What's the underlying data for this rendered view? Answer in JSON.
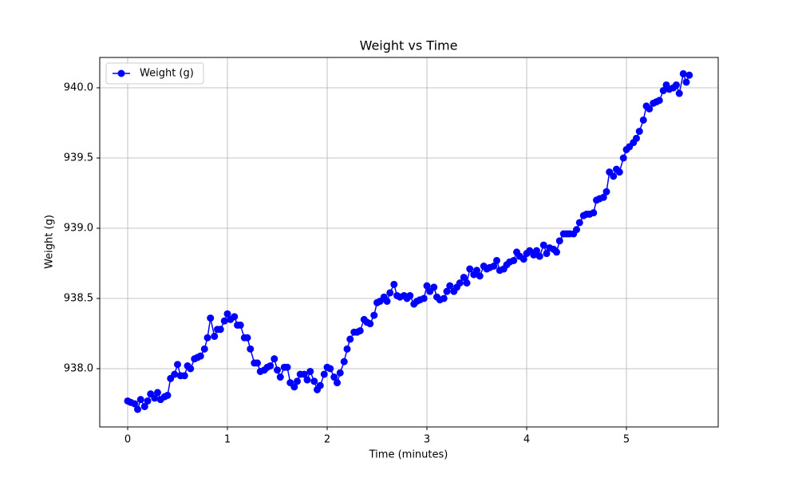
{
  "chart_data": {
    "type": "line",
    "title": "Weight vs Time",
    "x_label": "Time (minutes)",
    "y_label": "Weight (g)",
    "x": [
      0,
      0.03,
      0.07,
      0.1,
      0.13,
      0.17,
      0.2,
      0.23,
      0.27,
      0.3,
      0.33,
      0.37,
      0.4,
      0.43,
      0.47,
      0.5,
      0.53,
      0.57,
      0.6,
      0.63,
      0.67,
      0.7,
      0.73,
      0.77,
      0.8,
      0.83,
      0.87,
      0.9,
      0.93,
      0.97,
      1.0,
      1.03,
      1.07,
      1.1,
      1.13,
      1.17,
      1.2,
      1.23,
      1.27,
      1.3,
      1.33,
      1.37,
      1.4,
      1.43,
      1.47,
      1.5,
      1.53,
      1.57,
      1.6,
      1.63,
      1.67,
      1.7,
      1.73,
      1.77,
      1.8,
      1.83,
      1.87,
      1.9,
      1.93,
      1.97,
      2.0,
      2.03,
      2.07,
      2.1,
      2.13,
      2.17,
      2.2,
      2.23,
      2.27,
      2.3,
      2.33,
      2.37,
      2.4,
      2.43,
      2.47,
      2.5,
      2.53,
      2.57,
      2.6,
      2.63,
      2.67,
      2.7,
      2.73,
      2.77,
      2.8,
      2.83,
      2.87,
      2.9,
      2.93,
      2.97,
      3.0,
      3.03,
      3.07,
      3.1,
      3.13,
      3.17,
      3.2,
      3.23,
      3.27,
      3.3,
      3.33,
      3.37,
      3.4,
      3.43,
      3.47,
      3.5,
      3.53,
      3.57,
      3.6,
      3.63,
      3.67,
      3.7,
      3.73,
      3.77,
      3.8,
      3.83,
      3.87,
      3.9,
      3.93,
      3.97,
      4.0,
      4.03,
      4.07,
      4.1,
      4.13,
      4.17,
      4.2,
      4.23,
      4.27,
      4.3,
      4.33,
      4.37,
      4.4,
      4.43,
      4.47,
      4.5,
      4.53,
      4.57,
      4.6,
      4.63,
      4.67,
      4.7,
      4.73,
      4.77,
      4.8,
      4.83,
      4.87,
      4.9,
      4.93,
      4.97,
      5.0,
      5.03,
      5.07,
      5.1,
      5.13,
      5.17,
      5.2,
      5.23,
      5.27,
      5.3,
      5.33,
      5.37,
      5.4,
      5.43,
      5.47,
      5.5,
      5.53,
      5.57,
      5.6,
      5.63
    ],
    "series": [
      {
        "name": "Weight (g)",
        "color": "#0000ff",
        "values": [
          937.77,
          937.76,
          937.75,
          937.71,
          937.78,
          937.73,
          937.77,
          937.82,
          937.79,
          937.83,
          937.78,
          937.8,
          937.81,
          937.93,
          937.96,
          938.03,
          937.95,
          937.95,
          938.02,
          938.0,
          938.07,
          938.08,
          938.09,
          938.14,
          938.22,
          938.36,
          938.23,
          938.28,
          938.28,
          938.34,
          938.39,
          938.35,
          938.37,
          938.31,
          938.31,
          938.22,
          938.22,
          938.14,
          938.04,
          938.04,
          937.98,
          937.99,
          938.01,
          938.02,
          938.07,
          937.99,
          937.94,
          938.01,
          938.01,
          937.9,
          937.87,
          937.91,
          937.96,
          937.96,
          937.92,
          937.98,
          937.91,
          937.85,
          937.88,
          937.96,
          938.01,
          938.0,
          937.94,
          937.9,
          937.97,
          938.05,
          938.14,
          938.21,
          938.26,
          938.26,
          938.27,
          938.35,
          938.33,
          938.32,
          938.38,
          938.47,
          938.48,
          938.51,
          938.48,
          938.54,
          938.6,
          938.52,
          938.51,
          938.52,
          938.5,
          938.52,
          938.46,
          938.48,
          938.49,
          938.5,
          938.59,
          938.55,
          938.58,
          938.51,
          938.49,
          938.5,
          938.55,
          938.59,
          938.55,
          938.58,
          938.61,
          938.65,
          938.61,
          938.71,
          938.67,
          938.7,
          938.66,
          938.73,
          938.71,
          938.72,
          938.73,
          938.77,
          938.7,
          938.71,
          938.74,
          938.76,
          938.77,
          938.83,
          938.8,
          938.78,
          938.82,
          938.84,
          938.81,
          938.84,
          938.8,
          938.88,
          938.82,
          938.86,
          938.85,
          938.83,
          938.91,
          938.96,
          938.96,
          938.96,
          938.96,
          938.99,
          939.04,
          939.09,
          939.1,
          939.1,
          939.11,
          939.2,
          939.21,
          939.22,
          939.26,
          939.4,
          939.37,
          939.42,
          939.4,
          939.5,
          939.56,
          939.58,
          939.61,
          939.64,
          939.69,
          939.77,
          939.87,
          939.85,
          939.89,
          939.9,
          939.91,
          939.98,
          940.02,
          939.99,
          940.0,
          940.02,
          939.96,
          940.1,
          940.04,
          940.09
        ]
      }
    ],
    "xlim": [
      -0.28,
      5.92
    ],
    "ylim": [
      937.585,
      940.216
    ],
    "xticks": [
      0,
      1,
      2,
      3,
      4,
      5
    ],
    "yticks": [
      {
        "value": 938,
        "label": "938.0"
      },
      {
        "value": 938.5,
        "label": "938.5"
      },
      {
        "value": 939,
        "label": "939.0"
      },
      {
        "value": 939.5,
        "label": "939.5"
      },
      {
        "value": 940,
        "label": "940.0"
      }
    ],
    "grid": true,
    "legend": "upper left"
  }
}
